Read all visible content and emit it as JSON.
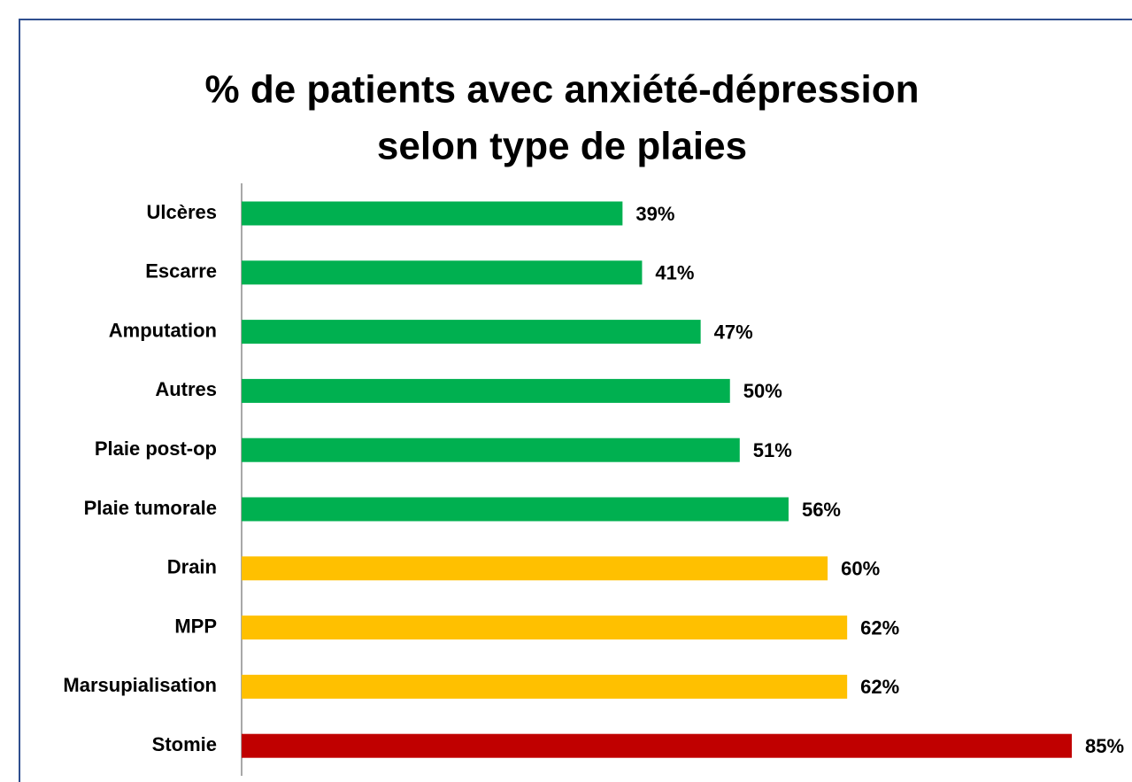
{
  "chart_data": {
    "type": "barh",
    "title": [
      "% de patients avec anxiété-dépression",
      "selon type de plaies"
    ],
    "categories": [
      "Ulcères",
      "Escarre",
      "Amputation",
      "Autres",
      "Plaie post-op",
      "Plaie tumorale",
      "Drain",
      "MPP",
      "Marsupialisation",
      "Stomie"
    ],
    "values": [
      39,
      41,
      47,
      50,
      51,
      56,
      60,
      62,
      62,
      85
    ],
    "value_labels": [
      "39%",
      "41%",
      "47%",
      "50%",
      "51%",
      "56%",
      "60%",
      "62%",
      "62%",
      "85%"
    ],
    "colors": [
      "#00b050",
      "#00b050",
      "#00b050",
      "#00b050",
      "#00b050",
      "#00b050",
      "#ffc000",
      "#ffc000",
      "#ffc000",
      "#c00000"
    ]
  }
}
